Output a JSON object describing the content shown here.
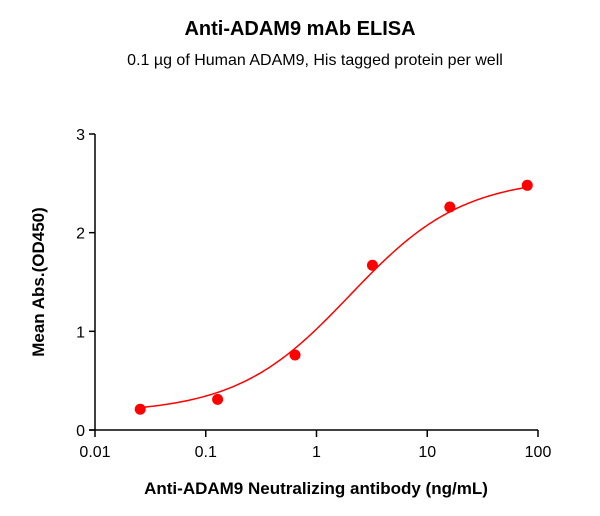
{
  "chart_data": {
    "type": "line",
    "title": "Anti-ADAM9 mAb ELISA",
    "subtitle": "0.1 µg of Human ADAM9, His tagged protein per well",
    "xlabel": "Anti-ADAM9 Neutralizing antibody (ng/mL)",
    "ylabel": "Mean Abs.(OD450)",
    "xscale": "log",
    "xlim": [
      0.01,
      100
    ],
    "ylim": [
      0,
      3
    ],
    "xticks": [
      "0.01",
      "0.1",
      "1",
      "10",
      "100"
    ],
    "yticks": [
      "0",
      "1",
      "2",
      "3"
    ],
    "grid": false,
    "legend": null,
    "series": [
      {
        "name": "Anti-ADAM9 mAb",
        "color": "#ff0000",
        "x": [
          0.0256,
          0.128,
          0.64,
          3.2,
          16,
          80
        ],
        "y": [
          0.21,
          0.31,
          0.76,
          1.67,
          2.26,
          2.48
        ],
        "fit": "4PL sigmoid"
      }
    ]
  }
}
